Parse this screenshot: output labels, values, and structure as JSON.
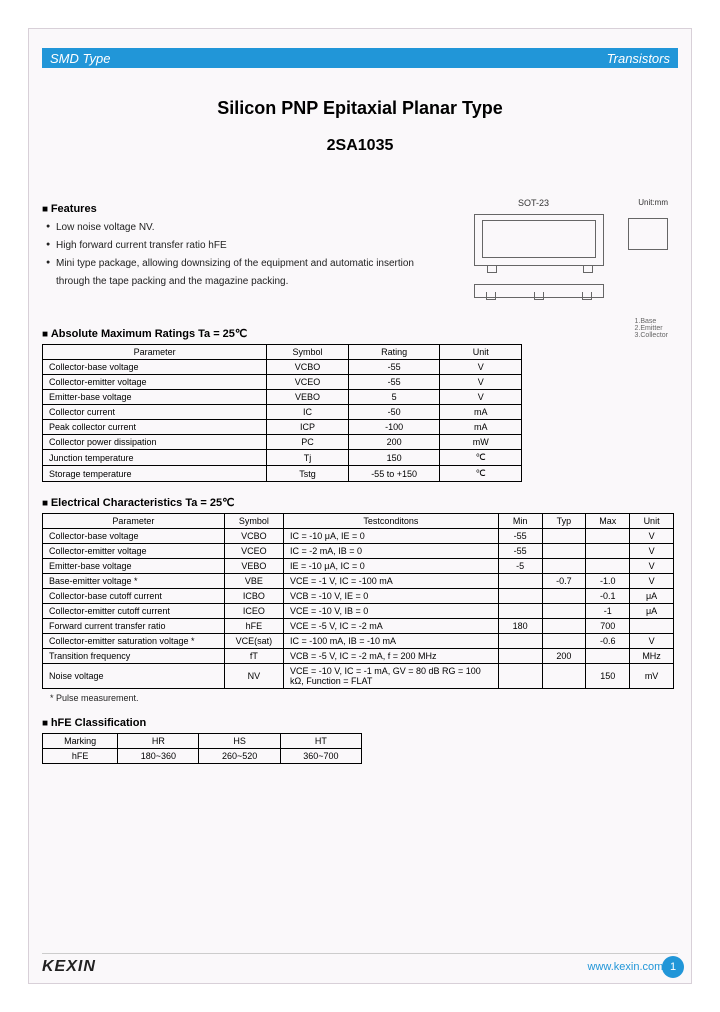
{
  "header": {
    "left": "SMD Type",
    "right": "Transistors"
  },
  "title1": "Silicon PNP Epitaxial Planar Type",
  "title2": "2SA1035",
  "package": {
    "name": "SOT-23",
    "unit_label": "Unit:mm"
  },
  "features": {
    "heading": "Features",
    "items": [
      "Low noise voltage NV.",
      "High forward current transfer ratio hFE",
      "Mini type package, allowing downsizing of the equipment and automatic insertion through the tape packing and the magazine packing."
    ]
  },
  "abs": {
    "heading": "Absolute Maximum Ratings Ta = 25℃",
    "columns": [
      "Parameter",
      "Symbol",
      "Rating",
      "Unit"
    ],
    "rows": [
      [
        "Collector-base voltage",
        "VCBO",
        "-55",
        "V"
      ],
      [
        "Collector-emitter voltage",
        "VCEO",
        "-55",
        "V"
      ],
      [
        "Emitter-base voltage",
        "VEBO",
        "5",
        "V"
      ],
      [
        "Collector current",
        "IC",
        "-50",
        "mA"
      ],
      [
        "Peak collector current",
        "ICP",
        "-100",
        "mA"
      ],
      [
        "Collector power dissipation",
        "PC",
        "200",
        "mW"
      ],
      [
        "Junction temperature",
        "Tj",
        "150",
        "℃"
      ],
      [
        "Storage temperature",
        "Tstg",
        "-55 to +150",
        "℃"
      ]
    ]
  },
  "elec": {
    "heading": "Electrical Characteristics Ta = 25℃",
    "columns": [
      "Parameter",
      "Symbol",
      "Testconditons",
      "Min",
      "Typ",
      "Max",
      "Unit"
    ],
    "rows": [
      [
        "Collector-base voltage",
        "VCBO",
        "IC = -10 μA, IE = 0",
        "-55",
        "",
        "",
        "V"
      ],
      [
        "Collector-emitter voltage",
        "VCEO",
        "IC = -2 mA, IB = 0",
        "-55",
        "",
        "",
        "V"
      ],
      [
        "Emitter-base voltage",
        "VEBO",
        "IE = -10 μA, IC = 0",
        "-5",
        "",
        "",
        "V"
      ],
      [
        "Base-emitter voltage  *",
        "VBE",
        "VCE = -1 V, IC = -100 mA",
        "",
        "-0.7",
        "-1.0",
        "V"
      ],
      [
        "Collector-base cutoff current",
        "ICBO",
        "VCB = -10 V, IE = 0",
        "",
        "",
        "-0.1",
        "μA"
      ],
      [
        "Collector-emitter cutoff current",
        "ICEO",
        "VCE = -10 V, IB = 0",
        "",
        "",
        "-1",
        "μA"
      ],
      [
        "Forward current transfer ratio",
        "hFE",
        "VCE = -5 V, IC = -2 mA",
        "180",
        "",
        "700",
        ""
      ],
      [
        "Collector-emitter saturation voltage *",
        "VCE(sat)",
        "IC = -100 mA, IB = -10 mA",
        "",
        "",
        "-0.6",
        "V"
      ],
      [
        "Transition frequency",
        "fT",
        "VCB = -5 V, IC = -2 mA, f = 200 MHz",
        "",
        "200",
        "",
        "MHz"
      ],
      [
        "Noise voltage",
        "NV",
        "VCE = -10 V, IC = -1 mA, GV = 80 dB  RG = 100 kΩ, Function = FLAT",
        "",
        "",
        "150",
        "mV"
      ]
    ],
    "note": "* Pulse measurement."
  },
  "hfe": {
    "heading": "hFE Classification",
    "columns": [
      "Marking",
      "HR",
      "HS",
      "HT"
    ],
    "row": [
      "hFE",
      "180~360",
      "260~520",
      "360~700"
    ]
  },
  "footer": {
    "logo": "KEXIN",
    "url": "www.kexin.com.cn",
    "page": "1"
  },
  "colors": {
    "accent": "#2196d8",
    "page_bg": "#faf8fa"
  }
}
